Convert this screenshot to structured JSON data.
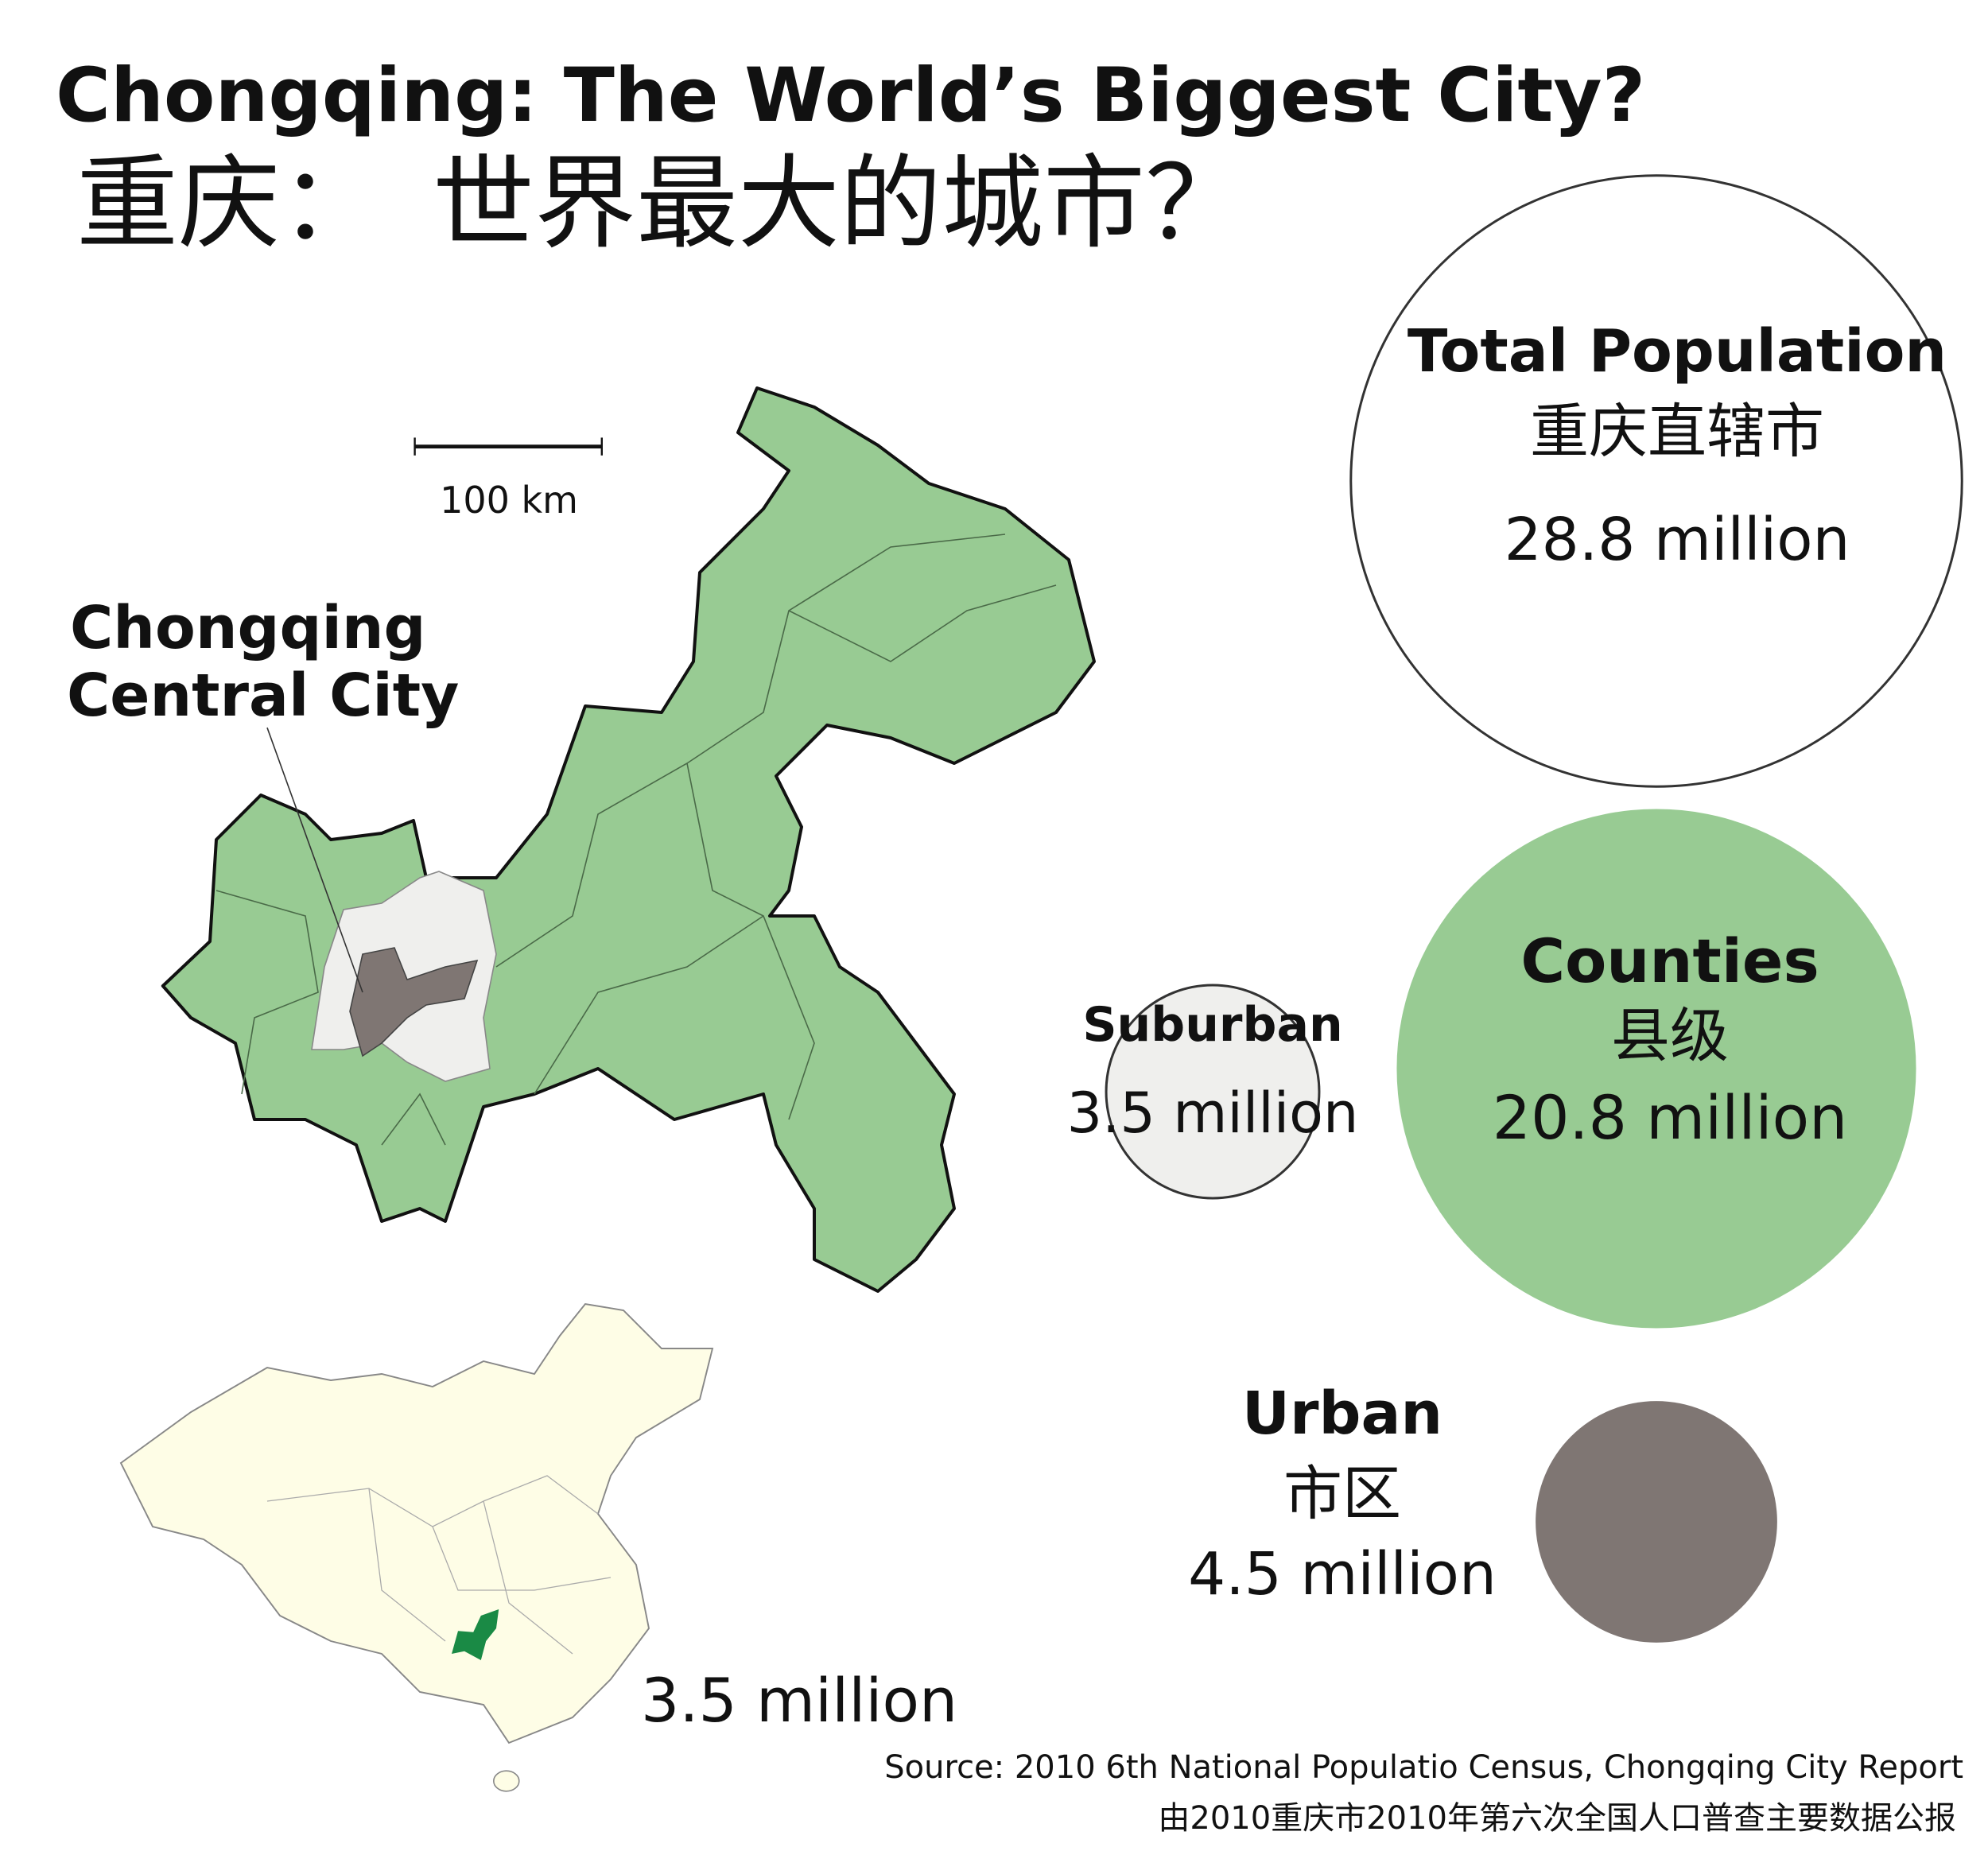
{
  "chart_data": {
    "type": "bubble",
    "title": "Chongqing: The World’s Biggest City?",
    "subtitle": "重庆：　世界最大的城市？",
    "categories": [
      "Total Population",
      "Counties",
      "Suburban",
      "Urban"
    ],
    "categories_zh": [
      "重庆直辖市",
      "县级",
      null,
      "市区"
    ],
    "values": [
      28.8,
      20.8,
      3.5,
      4.5
    ],
    "value_labels": [
      "28.8 million",
      "20.8 million",
      "3.5 million",
      "4.5 million"
    ],
    "colors": [
      "#ffffff",
      "#98cb93",
      "#efefed",
      "#7f7673"
    ],
    "scale_bar": "100 km",
    "central_city_label": [
      "Chongqing",
      "Central City"
    ],
    "map_label": "3.5 million",
    "source": [
      "Source: 2010 6th National Populatio Census, Chongqing City Report",
      "由2010重庆市2010年第六次全国人口普查主要数据公报"
    ]
  }
}
